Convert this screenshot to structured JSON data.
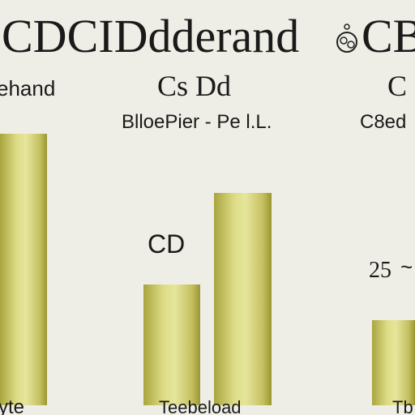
{
  "header": {
    "title": "CDCIDdderand",
    "title_right": "CB"
  },
  "labels": {
    "left": "ehand",
    "center": "Cs Dd",
    "right": "C",
    "subtitle": "BlloePier - Pe l.L.",
    "subtitle_right": "C8ed"
  },
  "annotations": {
    "center": "CD",
    "right": "25",
    "right_mark": "~"
  },
  "footer": {
    "left": "yte",
    "center": "Teebeload",
    "right": "Tb"
  }
}
